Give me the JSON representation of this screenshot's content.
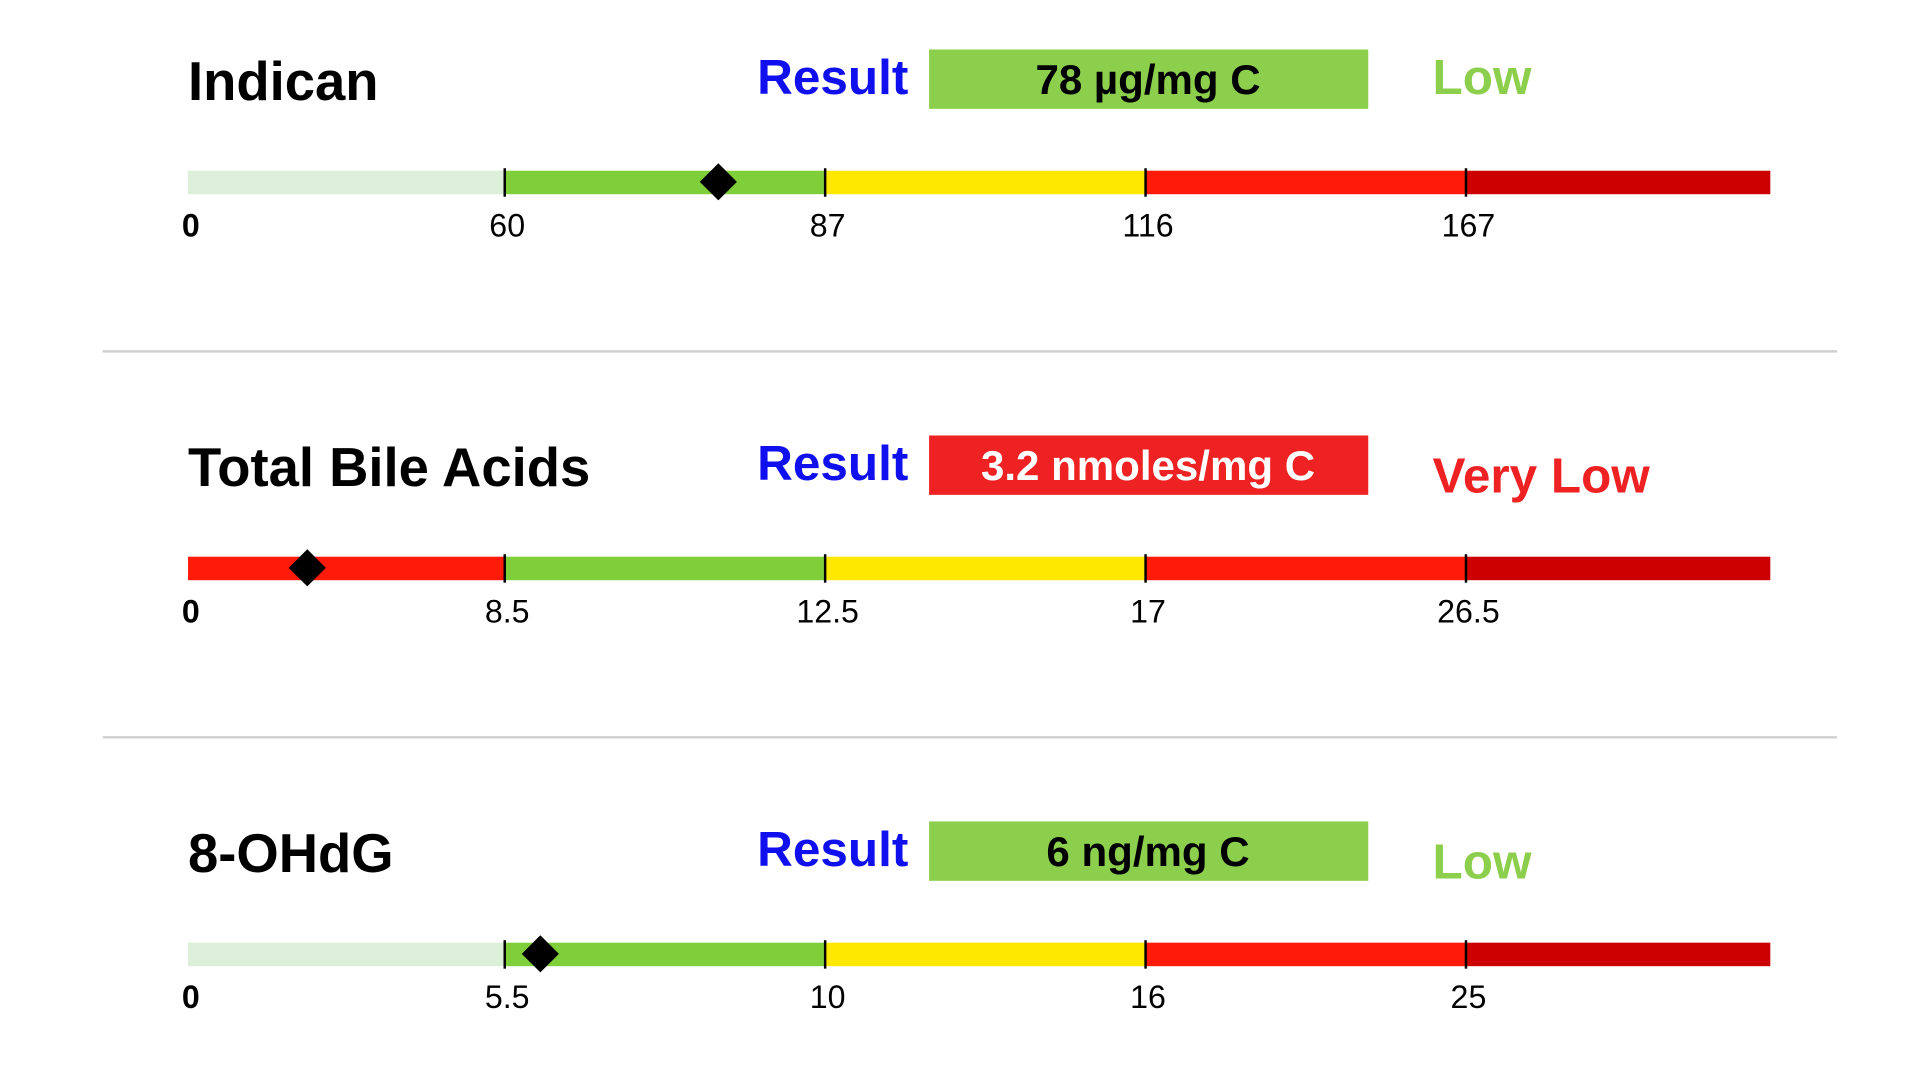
{
  "panels": [
    {
      "name": "Indican",
      "result_label": "Result",
      "result_text": "78 µg/mg C",
      "value": 78,
      "status": "Low",
      "box_color": "#8ccf4d",
      "box_text_color": "#000000",
      "status_color": "#8ccf4d",
      "first_band_color": "#dcefd9",
      "ticks": [
        0,
        60,
        87,
        116,
        167
      ]
    },
    {
      "name": "Total Bile Acids",
      "result_label": "Result",
      "result_text": "3.2 nmoles/mg C",
      "value": 3.2,
      "status": "Very Low",
      "box_color": "#ee2222",
      "box_text_color": "#ffffff",
      "status_color": "#ee2222",
      "first_band_color": "#ff1a0a",
      "ticks": [
        0,
        8.5,
        12.5,
        17,
        26.5
      ]
    },
    {
      "name": "8-OHdG",
      "result_label": "Result",
      "result_text": "6 ng/mg C",
      "value": 6,
      "status": "Low",
      "box_color": "#8ccf4d",
      "box_text_color": "#000000",
      "status_color": "#8ccf4d",
      "first_band_color": "#dcefd9",
      "ticks": [
        0,
        5.5,
        10,
        16,
        25
      ]
    }
  ]
}
